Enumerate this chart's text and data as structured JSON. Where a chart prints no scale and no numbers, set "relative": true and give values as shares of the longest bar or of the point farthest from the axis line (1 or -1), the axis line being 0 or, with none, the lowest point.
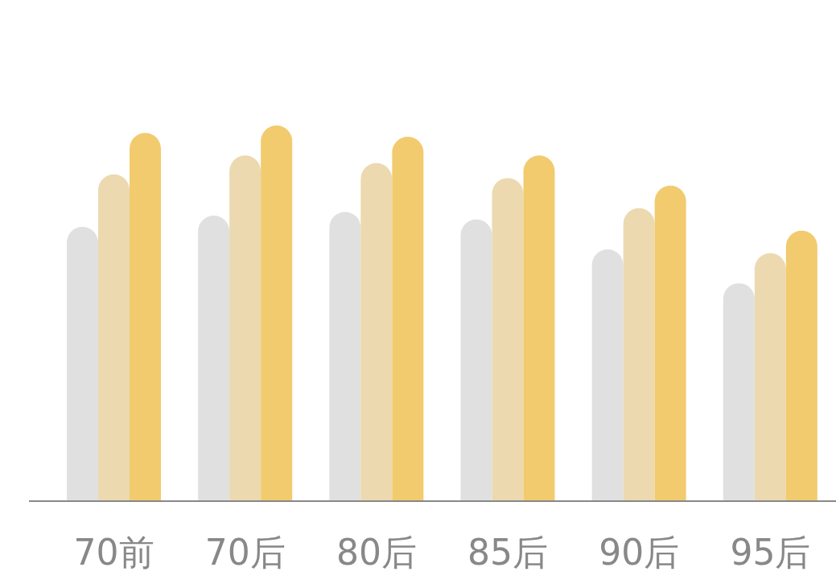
{
  "chart_data": {
    "type": "bar",
    "relative": true,
    "categories": [
      "70前",
      "70后",
      "80后",
      "85后",
      "90后",
      "95后"
    ],
    "series": [
      {
        "color": "#e0e0e0",
        "values": [
          0.73,
          0.76,
          0.77,
          0.75,
          0.67,
          0.58
        ]
      },
      {
        "color": "#ecd9b0",
        "values": [
          0.87,
          0.92,
          0.9,
          0.86,
          0.78,
          0.66
        ]
      },
      {
        "color": "#f2cb6e",
        "values": [
          0.98,
          1,
          0.97,
          0.92,
          0.84,
          0.72
        ]
      }
    ],
    "grid": false,
    "legend": false
  }
}
